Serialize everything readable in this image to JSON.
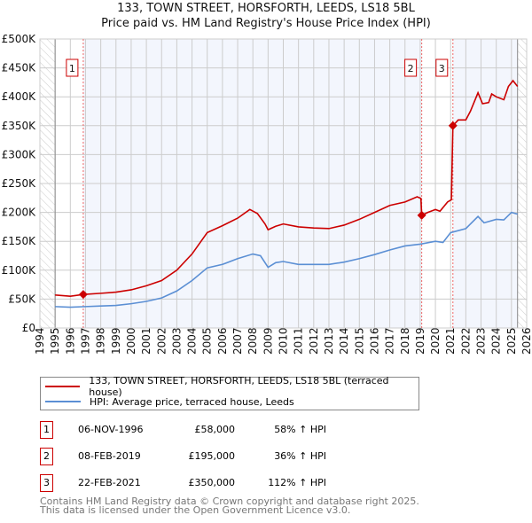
{
  "chart_data": {
    "type": "line",
    "title": "133, TOWN STREET, HORSFORTH, LEEDS, LS18 5BL",
    "subtitle": "Price paid vs. HM Land Registry's House Price Index (HPI)",
    "xlim": [
      1994,
      2026
    ],
    "ylim": [
      0,
      500000
    ],
    "x_ticks": [
      "1994",
      "1995",
      "1996",
      "1997",
      "1998",
      "1999",
      "2000",
      "2001",
      "2002",
      "2003",
      "2004",
      "2005",
      "2006",
      "2007",
      "2008",
      "2009",
      "2010",
      "2011",
      "2012",
      "2013",
      "2014",
      "2015",
      "2016",
      "2017",
      "2018",
      "2019",
      "2020",
      "2021",
      "2022",
      "2023",
      "2024",
      "2025",
      "2026"
    ],
    "y_ticks": [
      {
        "v": 0,
        "l": "£0"
      },
      {
        "v": 50000,
        "l": "£50K"
      },
      {
        "v": 100000,
        "l": "£100K"
      },
      {
        "v": 150000,
        "l": "£150K"
      },
      {
        "v": 200000,
        "l": "£200K"
      },
      {
        "v": 250000,
        "l": "£250K"
      },
      {
        "v": 300000,
        "l": "£300K"
      },
      {
        "v": 350000,
        "l": "£350K"
      },
      {
        "v": 400000,
        "l": "£400K"
      },
      {
        "v": 450000,
        "l": "£450K"
      },
      {
        "v": 500000,
        "l": "£500K"
      }
    ],
    "grid": true,
    "series": [
      {
        "name": "133, TOWN STREET, HORSFORTH, LEEDS, LS18 5BL (terraced house)",
        "color": "#cc0000",
        "x": [
          1995,
          1996,
          1996.85,
          1998,
          1999,
          2000,
          2001,
          2002,
          2003,
          2004,
          2005,
          2006,
          2007,
          2007.8,
          2008.3,
          2008.8,
          2009,
          2009.5,
          2010,
          2011,
          2012,
          2013,
          2014,
          2015,
          2016,
          2017,
          2018,
          2018.8,
          2019.05,
          2019.1,
          2019.5,
          2020,
          2020.3,
          2020.8,
          2021.05,
          2021.15,
          2021.5,
          2022,
          2022.3,
          2022.8,
          2023.1,
          2023.5,
          2023.7,
          2024,
          2024.5,
          2024.8,
          2025.1,
          2025.4
        ],
        "y": [
          57000,
          55000,
          58000,
          60000,
          62000,
          66000,
          73000,
          82000,
          100000,
          128000,
          165000,
          177000,
          190000,
          205000,
          198000,
          180000,
          170000,
          176000,
          180000,
          175000,
          173000,
          172000,
          178000,
          188000,
          200000,
          212000,
          218000,
          227000,
          224000,
          195000,
          200000,
          205000,
          202000,
          218000,
          222000,
          350000,
          360000,
          360000,
          375000,
          407000,
          388000,
          390000,
          405000,
          400000,
          395000,
          418000,
          428000,
          418000
        ]
      },
      {
        "name": "HPI: Average price, terraced house, Leeds",
        "color": "#5b8fd4",
        "x": [
          1995,
          1996,
          1997,
          1998,
          1999,
          2000,
          2001,
          2002,
          2003,
          2004,
          2005,
          2006,
          2007,
          2008,
          2008.5,
          2009,
          2009.5,
          2010,
          2011,
          2012,
          2013,
          2014,
          2015,
          2016,
          2017,
          2018,
          2019,
          2020,
          2020.5,
          2021,
          2022,
          2022.8,
          2023.2,
          2024,
          2024.5,
          2025,
          2025.4
        ],
        "y": [
          37000,
          36000,
          37000,
          38000,
          39000,
          42000,
          46000,
          52000,
          64000,
          82000,
          104000,
          110000,
          120000,
          128000,
          125000,
          105000,
          113000,
          115000,
          110000,
          110000,
          110000,
          114000,
          120000,
          127000,
          135000,
          142000,
          145000,
          150000,
          148000,
          165000,
          172000,
          193000,
          182000,
          188000,
          187000,
          200000,
          197000
        ]
      }
    ],
    "sales": [
      {
        "n": "1",
        "x": 1996.85,
        "y": 58000,
        "date": "06-NOV-1996",
        "price": "£58,000",
        "hpi": "58% ↑ HPI"
      },
      {
        "n": "2",
        "x": 2019.1,
        "y": 195000,
        "date": "08-FEB-2019",
        "price": "£195,000",
        "hpi": "36% ↑ HPI"
      },
      {
        "n": "3",
        "x": 2021.15,
        "y": 350000,
        "date": "22-FEB-2021",
        "price": "£350,000",
        "hpi": "112% ↑ HPI"
      }
    ],
    "data_end": 2025.4
  },
  "footer": {
    "line1": "Contains HM Land Registry data © Crown copyright and database right 2025.",
    "line2": "This data is licensed under the Open Government Licence v3.0."
  }
}
